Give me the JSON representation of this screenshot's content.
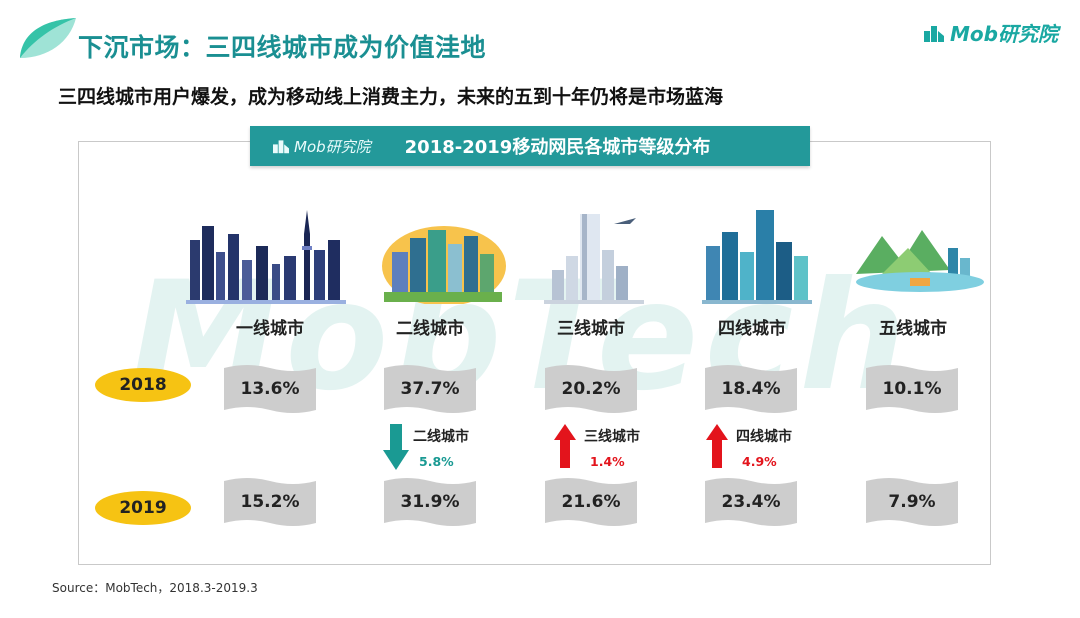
{
  "header": {
    "title": "下沉市场：三四线城市成为价值洼地",
    "brand": "Mob研究院",
    "subtitle": "三四线城市用户爆发，成为移动线上消费主力，未来的五到十年仍将是市场蓝海"
  },
  "chart": {
    "banner_brand": "Mob研究院",
    "banner_title": "2018-2019移动网民各城市等级分布",
    "watermark": "MobTech",
    "years": [
      "2018",
      "2019"
    ],
    "cities": [
      {
        "label": "一线城市",
        "v2018": "13.6%",
        "v2019": "15.2%"
      },
      {
        "label": "二线城市",
        "v2018": "37.7%",
        "v2019": "31.9%"
      },
      {
        "label": "三线城市",
        "v2018": "20.2%",
        "v2019": "21.6%"
      },
      {
        "label": "四线城市",
        "v2018": "18.4%",
        "v2019": "23.4%"
      },
      {
        "label": "五线城市",
        "v2018": "10.1%",
        "v2019": "7.9%"
      }
    ],
    "changes": [
      {
        "label": "二线城市",
        "value": "5.8%",
        "direction": "down",
        "color": "#1a9a93"
      },
      {
        "label": "三线城市",
        "value": "1.4%",
        "direction": "up",
        "color": "#e3141c"
      },
      {
        "label": "四线城市",
        "value": "4.9%",
        "direction": "up",
        "color": "#e3141c"
      }
    ],
    "chart_data": {
      "type": "table",
      "title": "2018-2019移动网民各城市等级分布",
      "categories": [
        "一线城市",
        "二线城市",
        "三线城市",
        "四线城市",
        "五线城市"
      ],
      "series": [
        {
          "name": "2018",
          "values": [
            13.6,
            37.7,
            20.2,
            18.4,
            10.1
          ]
        },
        {
          "name": "2019",
          "values": [
            15.2,
            31.9,
            21.6,
            23.4,
            7.9
          ]
        }
      ],
      "unit": "%"
    }
  },
  "footer": {
    "source": "Source：MobTech，2018.3-2019.3"
  },
  "colors": {
    "accent_teal": "#23999a",
    "title_teal": "#1a8f92",
    "year_yellow": "#f6c313",
    "card_gray": "#cdcdcd",
    "up_red": "#e3141c",
    "down_teal": "#1a9a93"
  }
}
